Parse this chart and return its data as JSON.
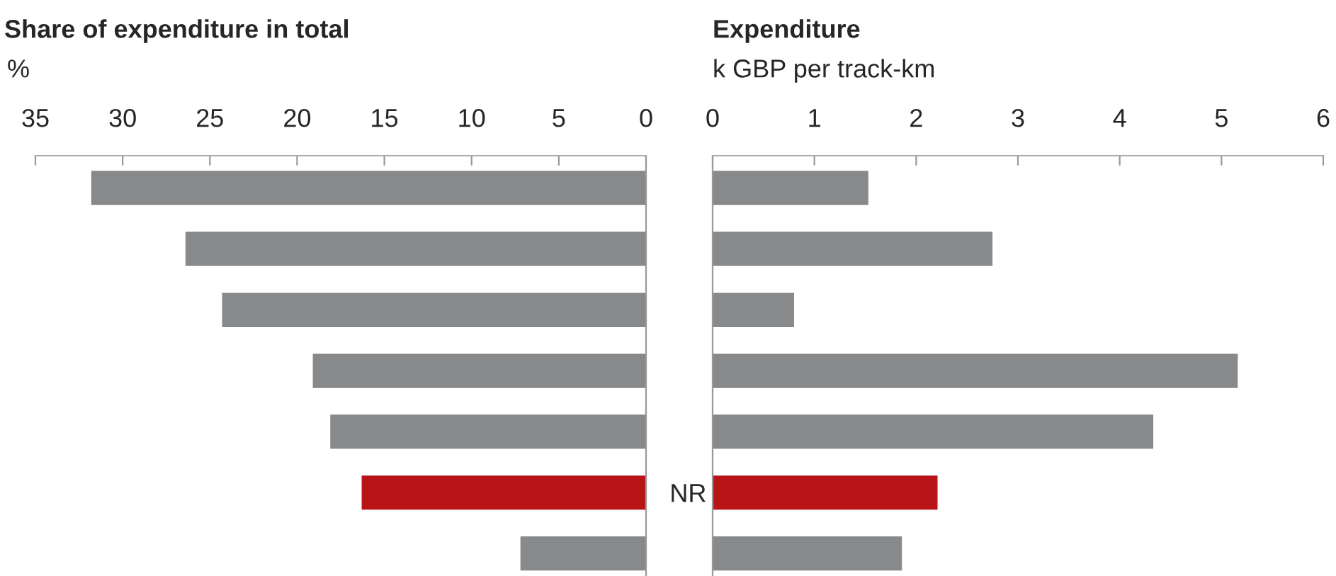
{
  "chart_data": [
    {
      "type": "bar",
      "orientation": "horizontal",
      "title": "Share of expenditure in total",
      "xlabel": "%",
      "categories": [
        null,
        null,
        null,
        null,
        null,
        "NR",
        null
      ],
      "values": [
        31.8,
        26.4,
        24.3,
        19.1,
        18.1,
        16.3,
        7.2
      ],
      "colors": [
        "#88898b",
        "#88898b",
        "#88898b",
        "#88898b",
        "#88898b",
        "#b81417",
        "#88898b"
      ],
      "xlim": [
        35,
        0
      ],
      "xticks": [
        35,
        30,
        25,
        20,
        15,
        10,
        5,
        0
      ],
      "grid": false,
      "legend": false
    },
    {
      "type": "bar",
      "orientation": "horizontal",
      "title": "Expenditure",
      "xlabel": "k GBP per track-km",
      "categories": [
        null,
        null,
        null,
        null,
        null,
        null,
        null
      ],
      "values": [
        1.53,
        2.75,
        0.8,
        5.16,
        4.33,
        2.21,
        1.86
      ],
      "colors": [
        "#88898b",
        "#88898b",
        "#88898b",
        "#88898b",
        "#88898b",
        "#b81417",
        "#88898b"
      ],
      "xlim": [
        0,
        6
      ],
      "xticks": [
        0,
        1,
        2,
        3,
        4,
        5,
        6
      ],
      "tick_labels": "x",
      "grid": false,
      "legend": false
    }
  ]
}
